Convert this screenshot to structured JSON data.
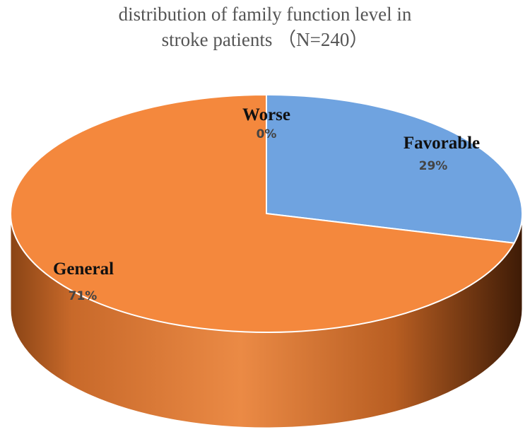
{
  "chart_data": {
    "type": "pie",
    "title_lines": [
      "distribution of family function level in",
      "stroke patients （N=240）"
    ],
    "slices": [
      {
        "name": "Favorable",
        "value": 29,
        "label": "29%",
        "color": "#6fa3e0"
      },
      {
        "name": "General",
        "value": 71,
        "label": "71%",
        "color": "#f4883d"
      },
      {
        "name": "Worse",
        "value": 0,
        "label": "0%",
        "color": "#a5a5a5"
      }
    ],
    "start_angle_deg": 0,
    "direction": "clockwise",
    "three_d": true
  }
}
